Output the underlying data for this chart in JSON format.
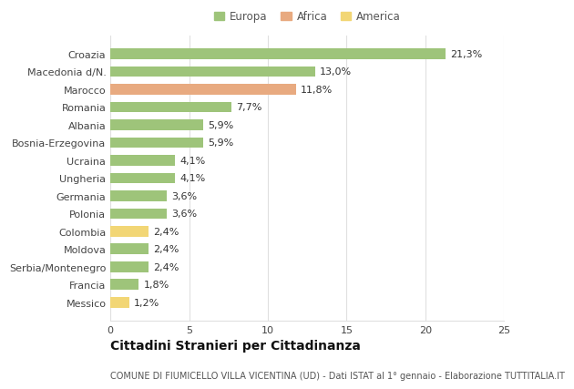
{
  "categories": [
    "Messico",
    "Francia",
    "Serbia/Montenegro",
    "Moldova",
    "Colombia",
    "Polonia",
    "Germania",
    "Ungheria",
    "Ucraina",
    "Bosnia-Erzegovina",
    "Albania",
    "Romania",
    "Marocco",
    "Macedonia d/N.",
    "Croazia"
  ],
  "values": [
    1.2,
    1.8,
    2.4,
    2.4,
    2.4,
    3.6,
    3.6,
    4.1,
    4.1,
    5.9,
    5.9,
    7.7,
    11.8,
    13.0,
    21.3
  ],
  "labels": [
    "1,2%",
    "1,8%",
    "2,4%",
    "2,4%",
    "2,4%",
    "3,6%",
    "3,6%",
    "4,1%",
    "4,1%",
    "5,9%",
    "5,9%",
    "7,7%",
    "11,8%",
    "13,0%",
    "21,3%"
  ],
  "colors": [
    "#f2d675",
    "#9ec47a",
    "#9ec47a",
    "#9ec47a",
    "#f2d675",
    "#9ec47a",
    "#9ec47a",
    "#9ec47a",
    "#9ec47a",
    "#9ec47a",
    "#9ec47a",
    "#9ec47a",
    "#e8aa80",
    "#9ec47a",
    "#9ec47a"
  ],
  "legend_labels": [
    "Europa",
    "Africa",
    "America"
  ],
  "legend_colors": [
    "#9ec47a",
    "#e8aa80",
    "#f2d675"
  ],
  "title": "Cittadini Stranieri per Cittadinanza",
  "subtitle": "COMUNE DI FIUMICELLO VILLA VICENTINA (UD) - Dati ISTAT al 1° gennaio - Elaborazione TUTTITALIA.IT",
  "xlim": [
    0,
    25
  ],
  "xticks": [
    0,
    5,
    10,
    15,
    20,
    25
  ],
  "background_color": "#ffffff",
  "grid_color": "#e0e0e0",
  "bar_height": 0.6,
  "label_fontsize": 8,
  "title_fontsize": 10,
  "subtitle_fontsize": 7,
  "tick_fontsize": 8,
  "legend_fontsize": 8.5
}
